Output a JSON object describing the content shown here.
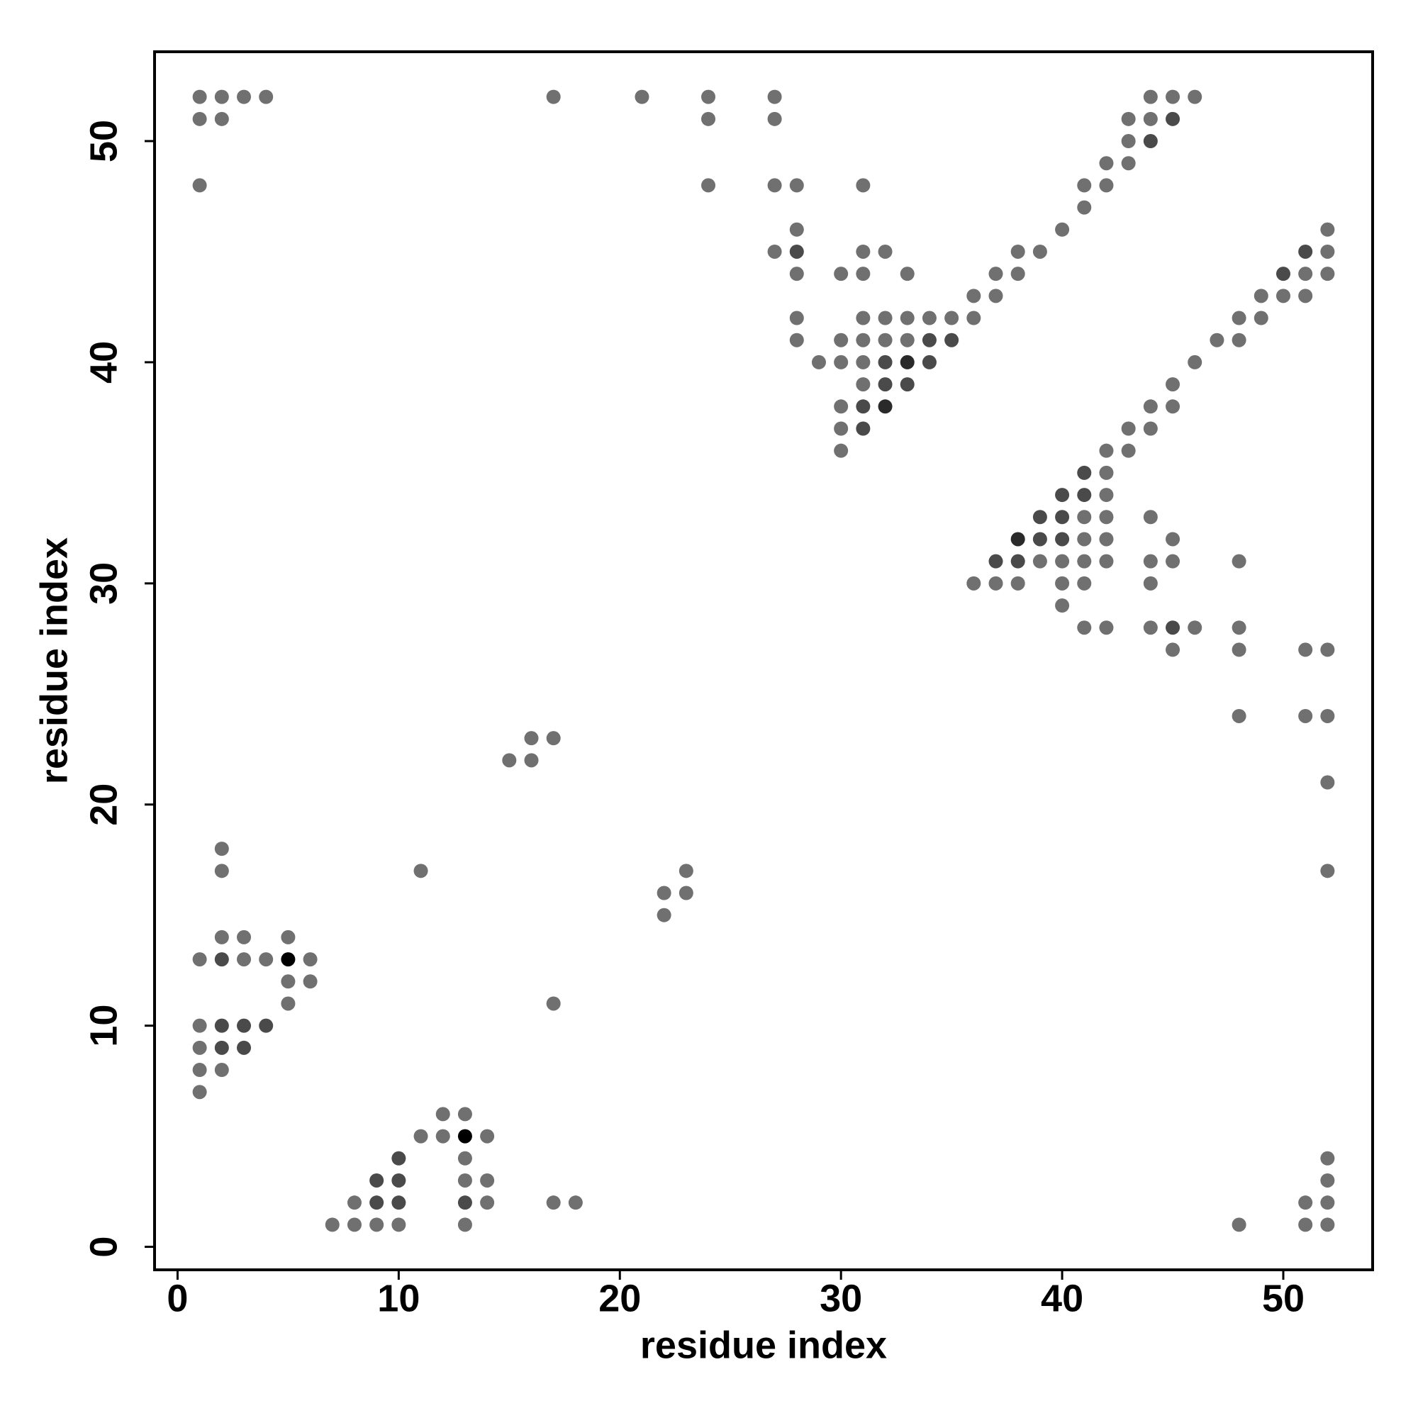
{
  "chart_data": {
    "type": "scatter",
    "xlabel": "residue index",
    "ylabel": "residue index",
    "xlim": [
      -1.04,
      54.04
    ],
    "ylim": [
      -1.04,
      54.04
    ],
    "xticks": [
      0,
      10,
      20,
      30,
      40,
      50
    ],
    "yticks": [
      0,
      10,
      20,
      30,
      40,
      50
    ],
    "series": [
      {
        "color": "#707070",
        "x": [
          1,
          2,
          3,
          4,
          17,
          21,
          24,
          27,
          44,
          45,
          46,
          1,
          2,
          24,
          27,
          43,
          44,
          43,
          42,
          43,
          1,
          24,
          27,
          28,
          31,
          41,
          42,
          41,
          28,
          40,
          52,
          27,
          31,
          32,
          38,
          39,
          52,
          28,
          30,
          31,
          33,
          37,
          38,
          51,
          52,
          36,
          37,
          49,
          50,
          51,
          28,
          31,
          32,
          33,
          34,
          35,
          36,
          48,
          49,
          28,
          30,
          31,
          32,
          33,
          47,
          48,
          29,
          30,
          31,
          46,
          31,
          45,
          30,
          44,
          45,
          30,
          43,
          44,
          30,
          42,
          43,
          42,
          42,
          41,
          42,
          44,
          41,
          42,
          45,
          39,
          40,
          41,
          42,
          44,
          45,
          48,
          36,
          37,
          38,
          40,
          41,
          44,
          40,
          41,
          42,
          44,
          46,
          48,
          45,
          48,
          51,
          52,
          48,
          51,
          52,
          16,
          17,
          15,
          16,
          52,
          2,
          2,
          11,
          23,
          52,
          22,
          23,
          22,
          2,
          3,
          5,
          1,
          3,
          4,
          6,
          5,
          6,
          5,
          17,
          1,
          1,
          1,
          2,
          1,
          12,
          13,
          11,
          12,
          14,
          13,
          52,
          13,
          14,
          52,
          8,
          14,
          17,
          18,
          51,
          52,
          7,
          8,
          9,
          10,
          13,
          48,
          51,
          52
        ],
        "values": [
          52,
          52,
          52,
          52,
          52,
          52,
          52,
          52,
          52,
          52,
          52,
          51,
          51,
          51,
          51,
          51,
          51,
          50,
          49,
          49,
          48,
          48,
          48,
          48,
          48,
          48,
          48,
          47,
          46,
          46,
          46,
          45,
          45,
          45,
          45,
          45,
          45,
          44,
          44,
          44,
          44,
          44,
          44,
          44,
          44,
          43,
          43,
          43,
          43,
          43,
          42,
          42,
          42,
          42,
          42,
          42,
          42,
          42,
          42,
          41,
          41,
          41,
          41,
          41,
          41,
          41,
          40,
          40,
          40,
          40,
          39,
          39,
          38,
          38,
          38,
          37,
          37,
          37,
          36,
          36,
          36,
          35,
          34,
          33,
          33,
          33,
          32,
          32,
          32,
          31,
          31,
          31,
          31,
          31,
          31,
          31,
          30,
          30,
          30,
          30,
          30,
          30,
          29,
          28,
          28,
          28,
          28,
          28,
          27,
          27,
          27,
          27,
          24,
          24,
          24,
          23,
          23,
          22,
          22,
          21,
          18,
          17,
          17,
          17,
          17,
          16,
          16,
          15,
          14,
          14,
          14,
          13,
          13,
          13,
          13,
          12,
          12,
          11,
          11,
          10,
          9,
          8,
          8,
          7,
          6,
          6,
          5,
          5,
          5,
          4,
          4,
          3,
          3,
          3,
          2,
          2,
          2,
          2,
          2,
          2,
          1,
          1,
          1,
          1,
          1,
          1,
          1,
          1
        ]
      },
      {
        "color": "#4a4a4a",
        "x": [
          45,
          44,
          28,
          51,
          50,
          34,
          35,
          34,
          32,
          32,
          33,
          31,
          31,
          41,
          40,
          41,
          39,
          40,
          39,
          40,
          37,
          38,
          45,
          2,
          2,
          3,
          4,
          2,
          3,
          10,
          9,
          10,
          9,
          10,
          13
        ],
        "values": [
          51,
          50,
          45,
          45,
          44,
          41,
          41,
          40,
          40,
          39,
          39,
          38,
          37,
          35,
          34,
          34,
          33,
          33,
          32,
          32,
          31,
          31,
          28,
          13,
          10,
          10,
          10,
          9,
          9,
          4,
          3,
          3,
          2,
          2,
          2
        ]
      },
      {
        "color": "#2a2a2a",
        "x": [
          33,
          32,
          38
        ],
        "values": [
          40,
          38,
          32
        ]
      },
      {
        "color": "#000000",
        "x": [
          5,
          13
        ],
        "values": [
          13,
          5
        ]
      }
    ]
  }
}
